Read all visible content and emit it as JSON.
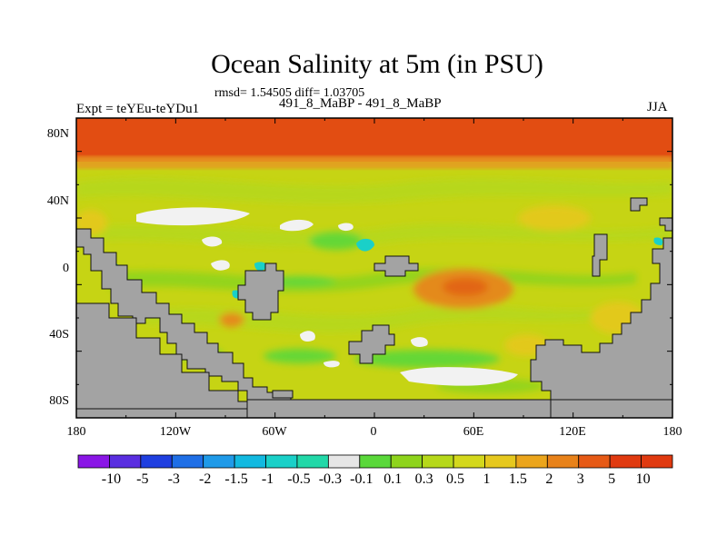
{
  "title": "Ocean Salinity at 5m (in PSU)",
  "stats": "rmsd= 1.54505 diff= 1.03705",
  "experiment": "Expt = teYEu-teYDu1",
  "subtitle": "491_8_MaBP - 491_8_MaBP",
  "season": "JJA",
  "lat_labels": [
    "80N",
    "40N",
    "0",
    "40S",
    "80S"
  ],
  "lon_labels": [
    "180",
    "120W",
    "60W",
    "0",
    "60E",
    "120E",
    "180"
  ],
  "colorbar": {
    "labels": [
      "-10",
      "-5",
      "-3",
      "-2",
      "-1.5",
      "-1",
      "-0.5",
      "-0.3",
      "-0.1",
      "0.1",
      "0.3",
      "0.5",
      "1",
      "1.5",
      "2",
      "3",
      "5",
      "10"
    ],
    "colors": [
      "#8a16e6",
      "#5a2ee0",
      "#1f3fe0",
      "#1f6fe6",
      "#1f9ae8",
      "#12b9e0",
      "#1ad0c8",
      "#22d8a8",
      "#e6e6e6",
      "#5ad83a",
      "#8ed41c",
      "#b6d81a",
      "#d4d81c",
      "#e6c81e",
      "#eba51c",
      "#e8821a",
      "#e65a16",
      "#e03a10",
      "#e03a10"
    ]
  },
  "map_colors": {
    "land": "#a3a3a3",
    "arctic": "#e24d12",
    "background": "#c6d414"
  }
}
